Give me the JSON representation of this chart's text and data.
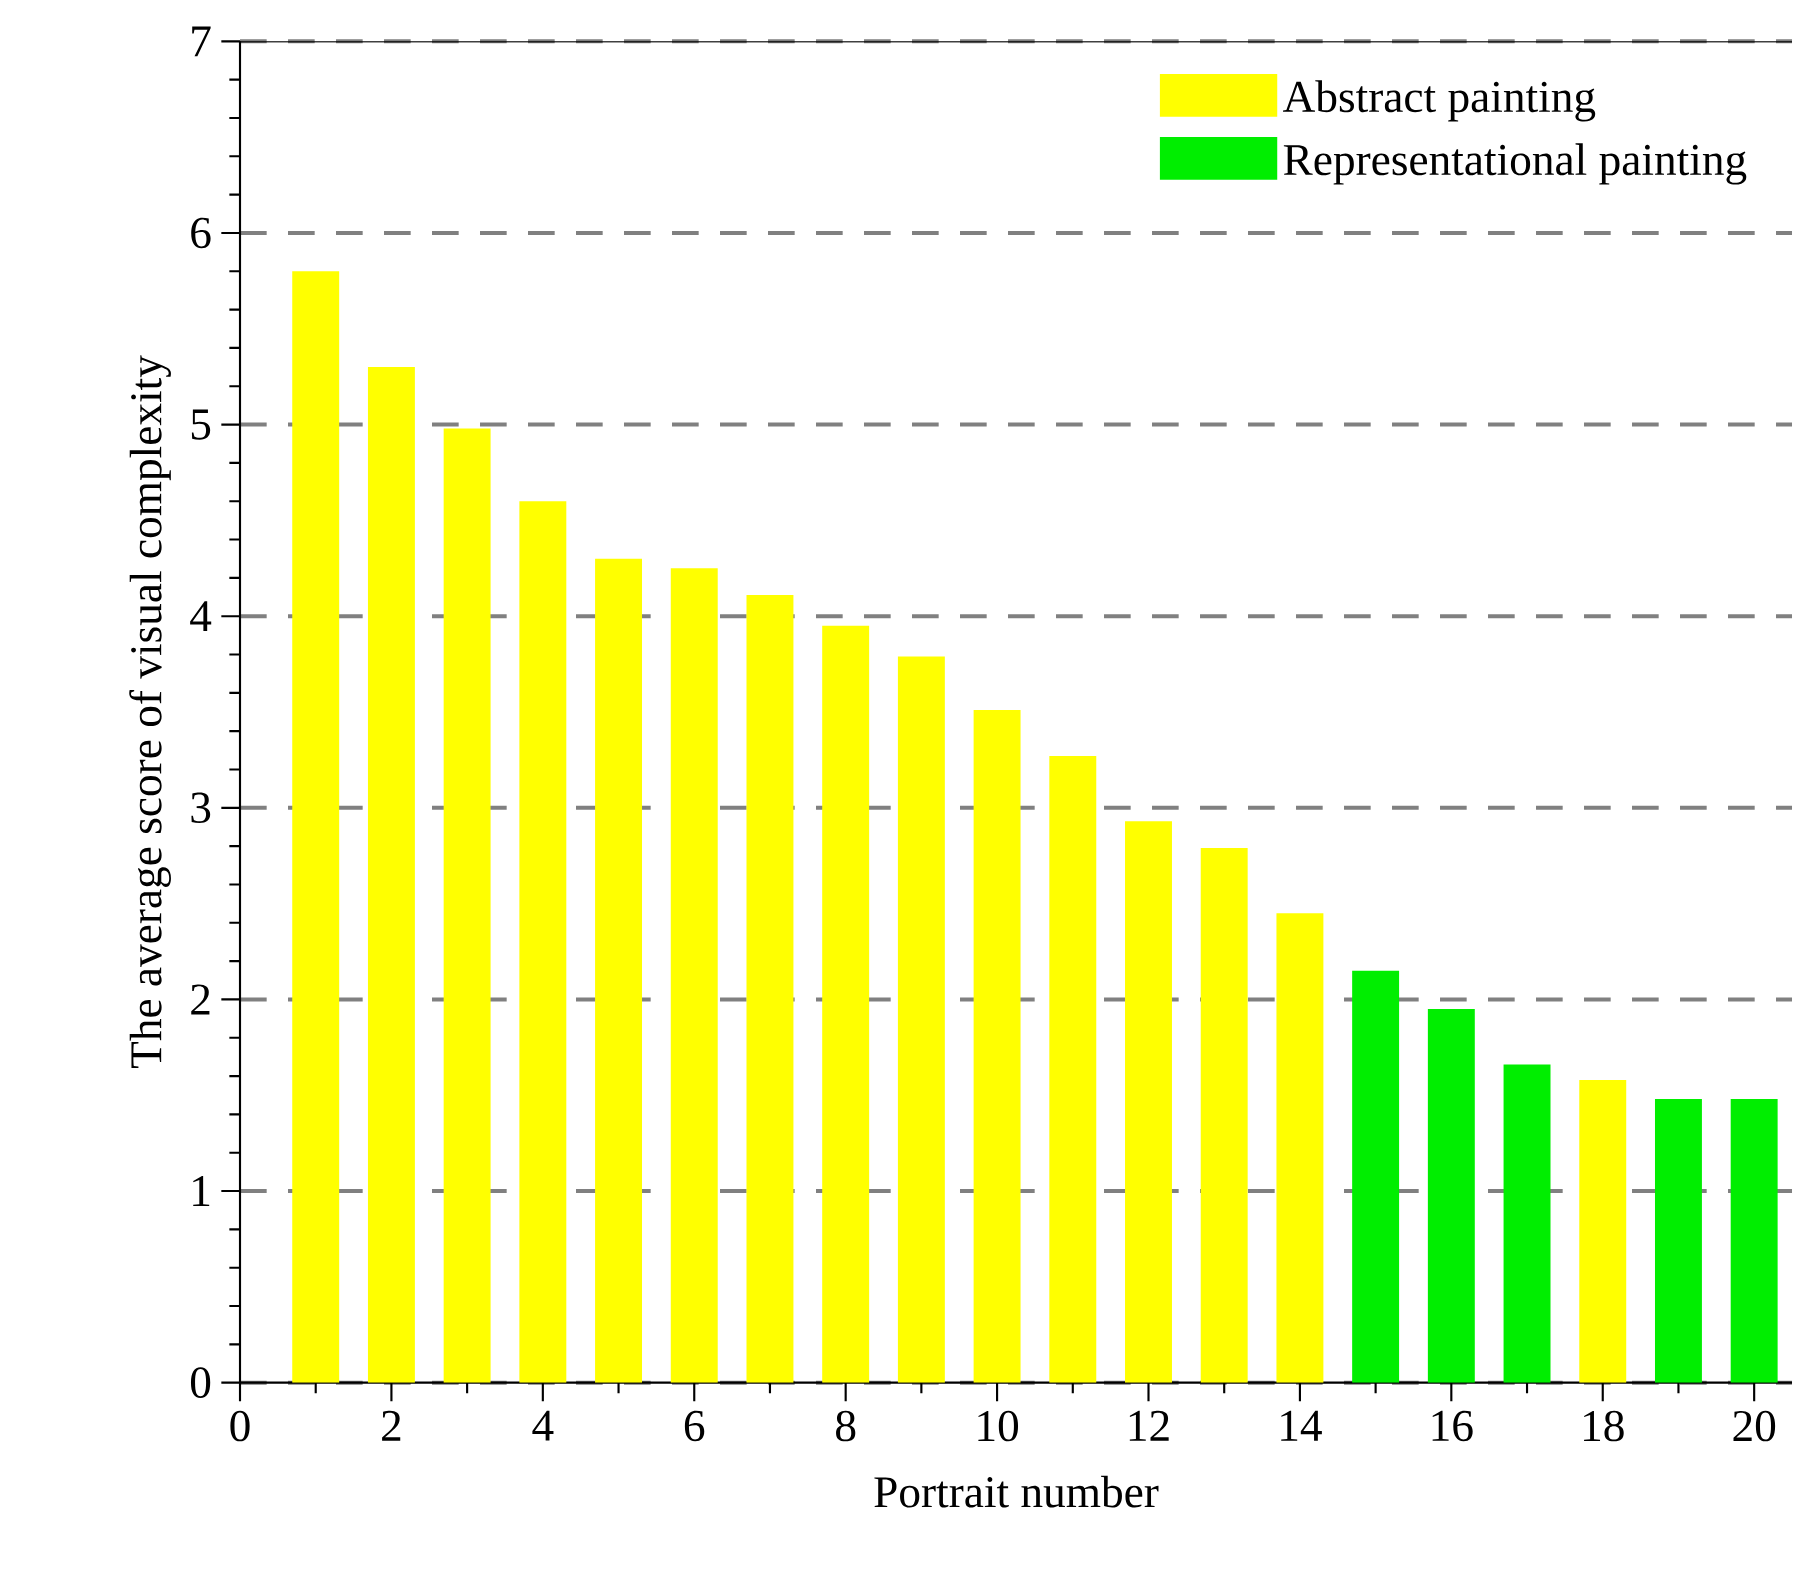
{
  "chart_data": {
    "type": "bar",
    "xlabel": "Portrait number",
    "ylabel": "The average score of visual complexity",
    "xlim": [
      0,
      20.5
    ],
    "ylim": [
      0,
      7
    ],
    "xticks": [
      0,
      2,
      4,
      6,
      8,
      10,
      12,
      14,
      16,
      18,
      20
    ],
    "yticks": [
      0,
      1,
      2,
      3,
      4,
      5,
      6,
      7
    ],
    "grid": "y",
    "legend": "top right",
    "series": [
      {
        "name": "Abstract painting",
        "color": "#ffff00",
        "x": [
          1,
          2,
          3,
          4,
          5,
          6,
          7,
          8,
          9,
          10,
          11,
          12,
          13,
          14,
          18
        ],
        "values": [
          5.8,
          5.3,
          4.98,
          4.6,
          4.3,
          4.25,
          4.11,
          3.95,
          3.79,
          3.51,
          3.27,
          2.93,
          2.79,
          2.45,
          1.58
        ]
      },
      {
        "name": "Representational painting",
        "color": "#00ee00",
        "x": [
          15,
          16,
          17,
          19,
          20
        ],
        "values": [
          2.15,
          1.95,
          1.66,
          1.48,
          1.48
        ]
      }
    ]
  }
}
